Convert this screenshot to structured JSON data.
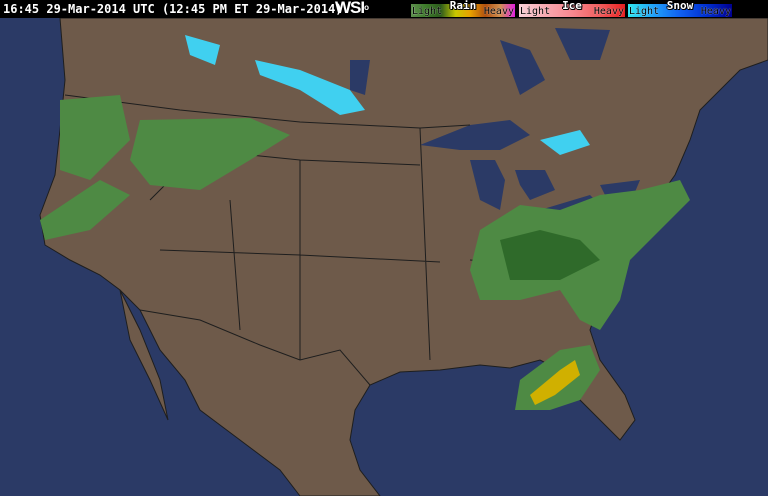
{
  "header": {
    "timestamp": "16:45 29-Mar-2014 UTC (12:45 PM ET 29-Mar-2014)",
    "logo": "WSI",
    "legend": [
      {
        "name": "Rain",
        "light": "Light",
        "heavy": "Heavy",
        "colors": [
          "#5e8f4e",
          "#3d7a2a",
          "#2c5a1c",
          "#c8c800",
          "#e8a000",
          "#b05010",
          "#d09050",
          "#e020e0"
        ]
      },
      {
        "name": "Ice",
        "light": "Light",
        "heavy": "Heavy",
        "colors": [
          "#f8d0d8",
          "#f8a8b0",
          "#f88890",
          "#f06060",
          "#e82020"
        ]
      },
      {
        "name": "Snow",
        "light": "Light",
        "heavy": "Heavy",
        "colors": [
          "#30e8f0",
          "#20a0f8",
          "#1060f0",
          "#0030d0",
          "#000090"
        ]
      }
    ]
  },
  "colors": {
    "water": "#2b3a66",
    "land": "#6e5a4a",
    "border": "#1e1e1e",
    "radar_light": "#4e8a44",
    "radar_mid": "#2f6a2a",
    "radar_heavy": "#d0b000",
    "snow": "#40d0f0"
  }
}
